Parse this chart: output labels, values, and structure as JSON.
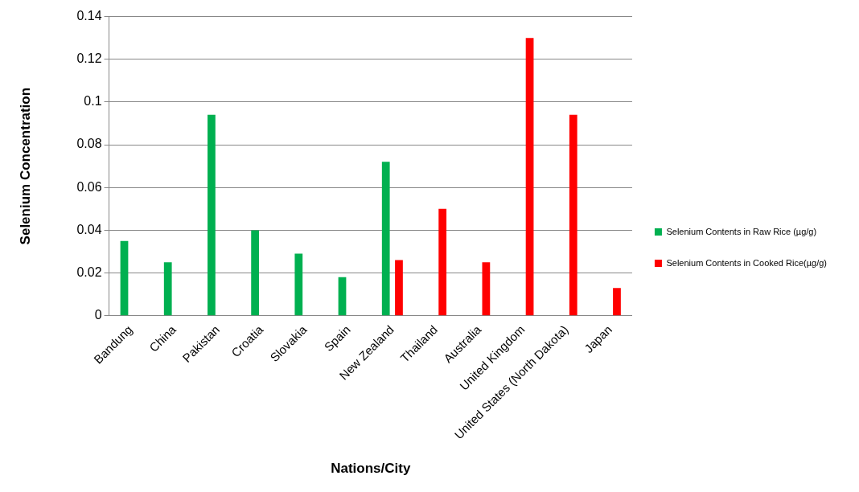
{
  "chart_data": {
    "type": "bar",
    "xlabel": "Nations/City",
    "ylabel": "Selenium Concentration",
    "categories": [
      "Bandung",
      "China",
      "Pakistan",
      "Croatia",
      "Slovakia",
      "Spain",
      "New Zealand",
      "Thailand",
      "Australia",
      "United Kingdom",
      "United States (North Dakota)",
      "Japan"
    ],
    "series": [
      {
        "name": "Selenium Contents in Raw Rice (µg/g)",
        "color": "#00b050",
        "values": [
          0.035,
          0.025,
          0.094,
          0.04,
          0.029,
          0.018,
          0.072,
          null,
          null,
          null,
          null,
          null
        ]
      },
      {
        "name": "Selenium Contents in Cooked Rice(µg/g)",
        "color": "#ff0000",
        "values": [
          null,
          null,
          null,
          null,
          null,
          null,
          0.026,
          0.05,
          0.025,
          0.13,
          0.094,
          0.013
        ]
      }
    ],
    "ylim": [
      0,
      0.14
    ],
    "yticks": [
      0,
      0.02,
      0.04,
      0.06,
      0.08,
      0.1,
      0.12,
      0.14
    ],
    "grid": "y",
    "legend": "right"
  }
}
